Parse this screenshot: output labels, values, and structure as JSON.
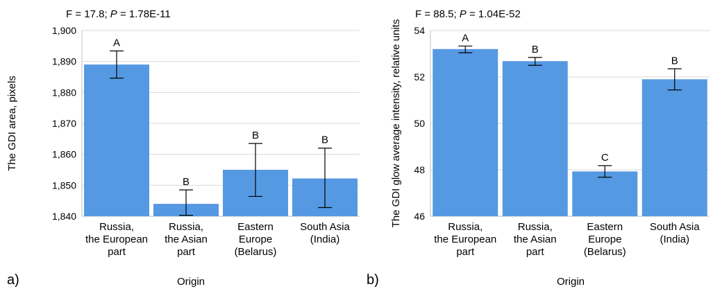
{
  "bar_color": "#5599e3",
  "grid_color": "#d9d9d9",
  "chart_data": [
    {
      "panel_label": "a)",
      "type": "bar",
      "title": "F = 17.8; P = 1.78E-11",
      "title_parts": [
        "F = 17.8; ",
        "P",
        " = 1.78E-11"
      ],
      "xlabel": "Origin",
      "ylabel": "The GDI area, pixels",
      "ylim": [
        1840,
        1900
      ],
      "yticks": [
        1840,
        1850,
        1860,
        1870,
        1880,
        1890,
        1900
      ],
      "ytick_labels": [
        "1,840",
        "1,850",
        "1,860",
        "1,870",
        "1,880",
        "1,890",
        "1,900"
      ],
      "grid": true,
      "categories": [
        [
          "Russia,",
          "the European",
          "part"
        ],
        [
          "Russia,",
          "the Asian",
          "part"
        ],
        [
          "Eastern",
          "Europe",
          "(Belarus)"
        ],
        [
          "South Asia",
          "(India)"
        ]
      ],
      "values": [
        1889,
        1844,
        1855,
        1852.2
      ],
      "err_low": [
        1884.6,
        1840.3,
        1846.4,
        1842.8
      ],
      "err_high": [
        1893.4,
        1848.5,
        1863.5,
        1862
      ],
      "letters": [
        "A",
        "B",
        "B",
        "B"
      ]
    },
    {
      "panel_label": "b)",
      "type": "bar",
      "title": "F = 88.5; P = 1.04E-52",
      "title_parts": [
        "F = 88.5; ",
        "P",
        " = 1.04E-52"
      ],
      "xlabel": "Origin",
      "ylabel": "The GDI glow average intensity, relative units",
      "ylim": [
        46,
        54
      ],
      "yticks": [
        46,
        48,
        50,
        52,
        54
      ],
      "ytick_labels": [
        "46",
        "48",
        "50",
        "52",
        "54"
      ],
      "grid": true,
      "categories": [
        [
          "Russia,",
          "the European",
          "part"
        ],
        [
          "Russia,",
          "the Asian",
          "part"
        ],
        [
          "Eastern",
          "Europe",
          "(Belarus)"
        ],
        [
          "South Asia",
          "(India)"
        ]
      ],
      "values": [
        53.2,
        52.68,
        47.93,
        51.9
      ],
      "err_low": [
        53.04,
        52.5,
        47.68,
        51.44
      ],
      "err_high": [
        53.33,
        52.84,
        48.18,
        52.35
      ],
      "letters": [
        "A",
        "B",
        "C",
        "B"
      ]
    }
  ]
}
